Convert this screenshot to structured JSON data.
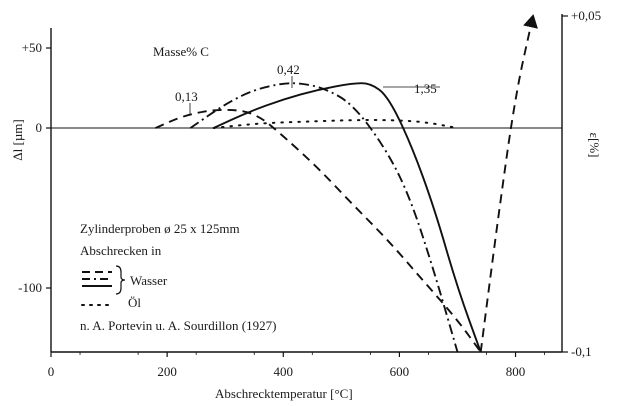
{
  "chart_data": {
    "type": "line",
    "title": "",
    "subtitle": "Masse% C",
    "xlabel": "Abschrecktemperatur [°C]",
    "ylabel_left": "Δl [µm]",
    "ylabel_right": "ε[%]",
    "xlim": [
      0,
      880
    ],
    "ylim_left": [
      -140,
      60
    ],
    "ylim_right": [
      -0.1,
      0.05
    ],
    "x_ticks": [
      0,
      200,
      400,
      600,
      800
    ],
    "y_ticks_left": [
      50,
      0,
      -100
    ],
    "y_tick_labels_left": [
      "+50",
      "0",
      "-100"
    ],
    "y_ticks_right": [
      0.05,
      -0.1
    ],
    "y_tick_labels_right": [
      "+0,05",
      "-0,1"
    ],
    "grid": false,
    "series": [
      {
        "name": "0,13",
        "style": "dashed",
        "x": [
          180,
          230,
          290,
          350,
          400,
          460,
          520,
          580,
          640,
          700,
          740
        ],
        "y": [
          0,
          8,
          12,
          10,
          -5,
          -25,
          -48,
          -70,
          -95,
          -120,
          -140
        ]
      },
      {
        "name": "0,42",
        "style": "dashdot",
        "x": [
          240,
          300,
          350,
          400,
          430,
          470,
          520,
          580,
          620,
          660,
          700
        ],
        "y": [
          0,
          15,
          24,
          28,
          28,
          25,
          15,
          -15,
          -45,
          -90,
          -140
        ]
      },
      {
        "name": "1,35",
        "style": "solid",
        "x": [
          280,
          340,
          400,
          460,
          520,
          550,
          580,
          620,
          660,
          700,
          740
        ],
        "y": [
          0,
          10,
          18,
          24,
          28,
          28,
          20,
          -10,
          -50,
          -100,
          -140
        ]
      },
      {
        "name": "Öl",
        "style": "dotted",
        "x": [
          280,
          360,
          440,
          520,
          580,
          640,
          700
        ],
        "y": [
          0,
          3,
          4,
          5,
          5,
          4,
          0
        ]
      },
      {
        "name": "",
        "style": "dashed",
        "axis": "right",
        "x": [
          740,
          770,
          800,
          830
        ],
        "y": [
          -0.1,
          -0.04,
          0.015,
          0.05
        ]
      }
    ],
    "annotations": {
      "label_013": "0,13",
      "label_042": "0,42",
      "label_135": "1,35"
    },
    "legend": {
      "line1": "Zylinderproben ø 25 x 125mm",
      "line2": "Abschrecken in",
      "wasser": "Wasser",
      "oel": "Öl",
      "source": "n. A. Portevin u. A. Sourdillon (1927)"
    }
  }
}
